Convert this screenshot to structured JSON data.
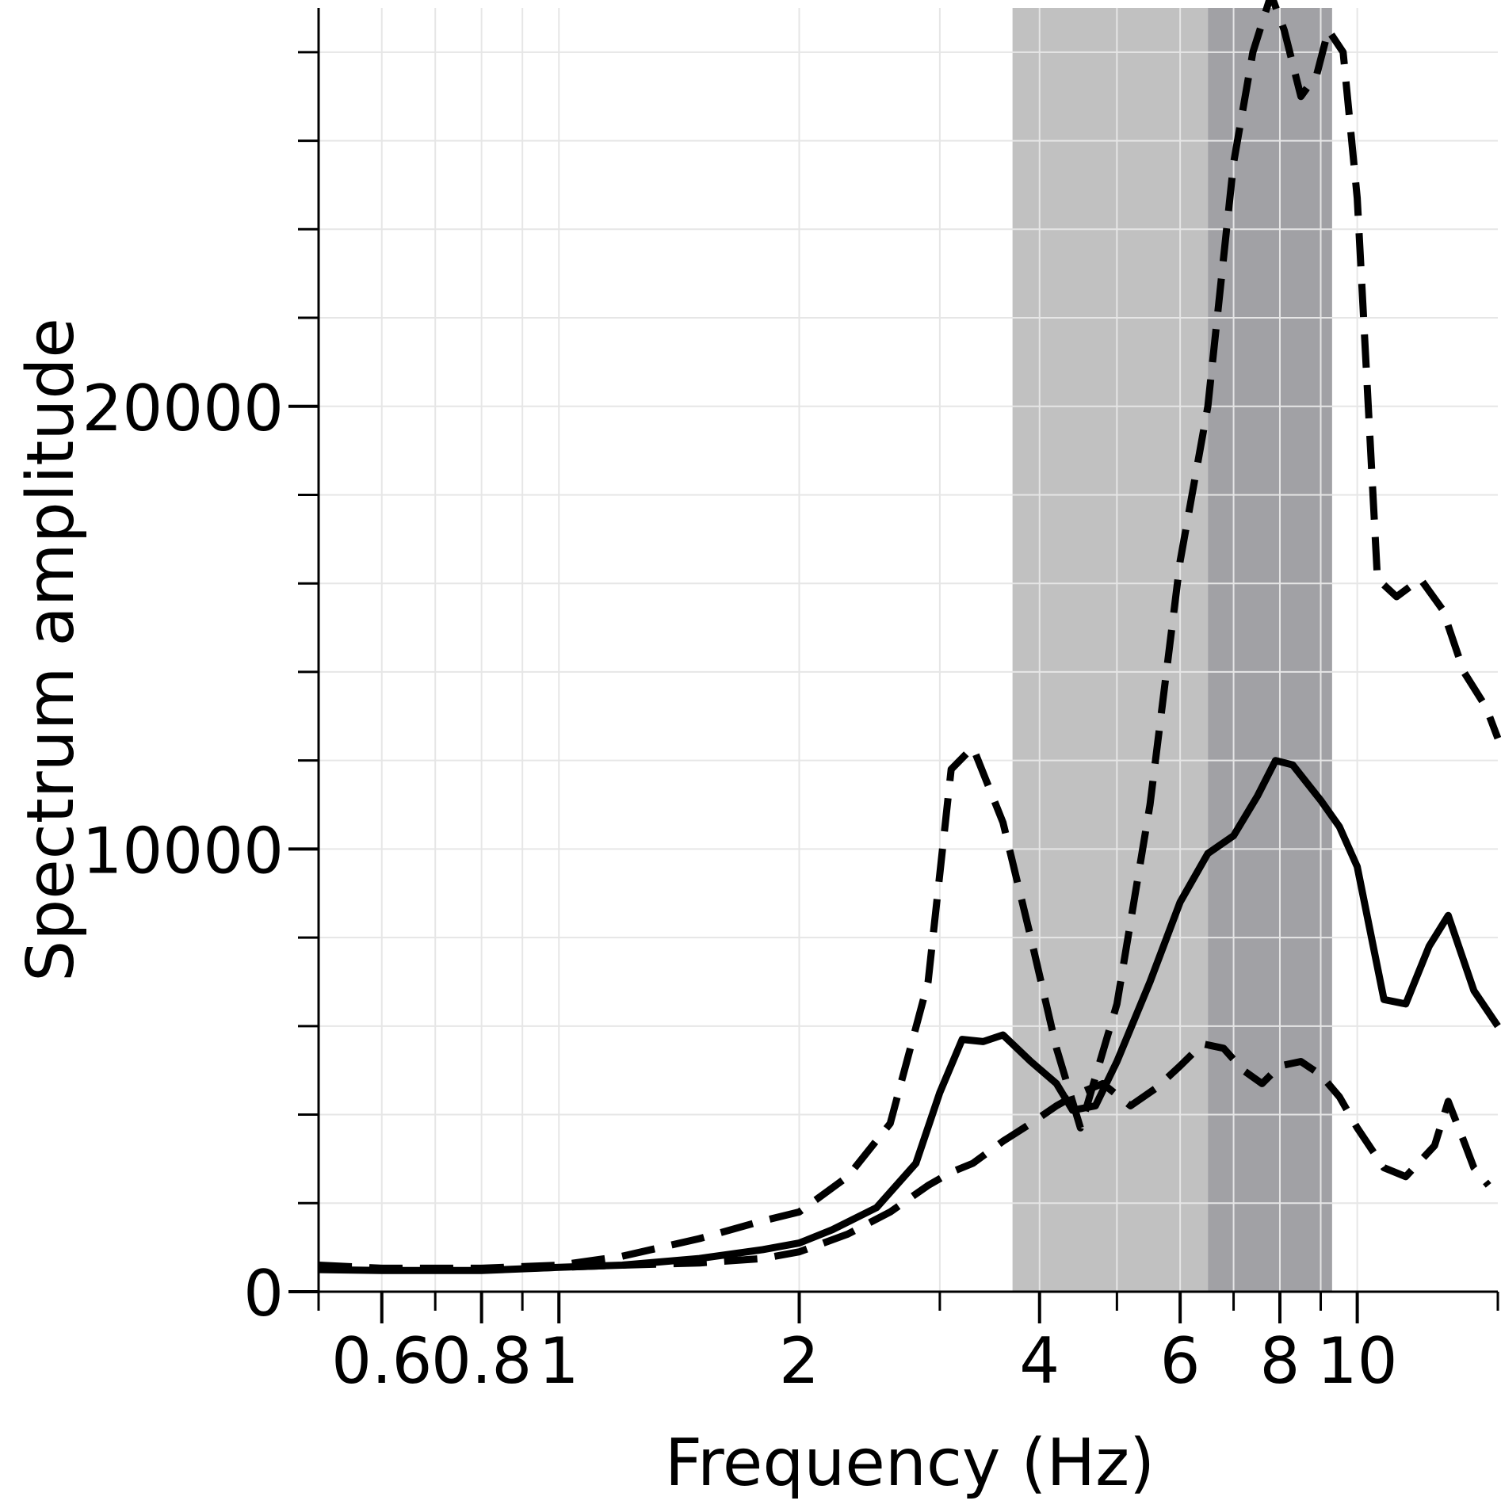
{
  "chart_data": {
    "type": "line",
    "title": "",
    "xlabel": "Frequency (Hz)",
    "ylabel": "Spectrum amplitude",
    "x_scale": "log",
    "xlim": [
      0.5,
      15
    ],
    "ylim": [
      0,
      29000
    ],
    "grid": true,
    "legend": "none",
    "x_tick_labels": [
      {
        "value": 0.6,
        "label": "0.6"
      },
      {
        "value": 0.8,
        "label": "0.8"
      },
      {
        "value": 1,
        "label": "1"
      },
      {
        "value": 2,
        "label": "2"
      },
      {
        "value": 4,
        "label": "4"
      },
      {
        "value": 6,
        "label": "6"
      },
      {
        "value": 8,
        "label": "8"
      },
      {
        "value": 10,
        "label": "10"
      }
    ],
    "y_tick_labels": [
      {
        "value": 0,
        "label": "0"
      },
      {
        "value": 10000,
        "label": "10000"
      },
      {
        "value": 20000,
        "label": "20000"
      }
    ],
    "shaded_bands": [
      {
        "x_range": [
          3.7,
          6.5
        ],
        "color": "#c1c1c1"
      },
      {
        "x_range": [
          6.5,
          9.3
        ],
        "color": "#a1a1a5"
      }
    ],
    "series": [
      {
        "style": "solid",
        "color": "#000000",
        "x": [
          0.5,
          0.6,
          0.8,
          1.0,
          1.2,
          1.5,
          1.8,
          2.0,
          2.2,
          2.5,
          2.8,
          3.0,
          3.2,
          3.4,
          3.6,
          3.9,
          4.2,
          4.4,
          4.7,
          5.0,
          5.5,
          6.0,
          6.5,
          7.0,
          7.5,
          7.9,
          8.3,
          9.0,
          9.5,
          10.0,
          10.8,
          11.5,
          12.3,
          13.0,
          14.0,
          15.0
        ],
        "y": [
          500,
          480,
          480,
          550,
          600,
          750,
          950,
          1100,
          1400,
          1900,
          2900,
          4500,
          5700,
          5650,
          5800,
          5200,
          4700,
          4100,
          4200,
          5200,
          7000,
          8800,
          9900,
          10300,
          11200,
          12000,
          11900,
          11100,
          10500,
          9600,
          6600,
          6500,
          7800,
          8500,
          6800,
          6000
        ]
      },
      {
        "style": "dashed",
        "color": "#000000",
        "x": [
          0.5,
          0.6,
          0.8,
          1.0,
          1.2,
          1.5,
          1.8,
          2.0,
          2.3,
          2.6,
          2.9,
          3.1,
          3.3,
          3.6,
          3.9,
          4.2,
          4.5,
          5.0,
          5.5,
          6.0,
          6.5,
          7.0,
          7.4,
          7.8,
          8.1,
          8.5,
          8.9,
          9.2,
          9.6,
          10.0,
          10.6,
          11.2,
          12.0,
          12.8,
          13.6,
          14.5,
          15.0
        ],
        "y": [
          600,
          530,
          530,
          600,
          800,
          1200,
          1600,
          1800,
          2600,
          3800,
          7000,
          11800,
          12300,
          10600,
          8000,
          5500,
          3700,
          6500,
          11000,
          16500,
          20000,
          25500,
          28000,
          29300,
          28500,
          27000,
          27500,
          28500,
          28000,
          24700,
          16100,
          15700,
          16100,
          15400,
          14000,
          13200,
          12500
        ]
      },
      {
        "style": "dashed",
        "color": "#000000",
        "x": [
          0.5,
          0.6,
          0.8,
          1.0,
          1.2,
          1.5,
          1.8,
          2.0,
          2.3,
          2.6,
          2.9,
          3.1,
          3.3,
          3.6,
          3.9,
          4.2,
          4.5,
          4.8,
          5.2,
          5.6,
          6.0,
          6.4,
          6.8,
          7.2,
          7.6,
          8.0,
          8.5,
          9.0,
          9.5,
          10.0,
          10.8,
          11.5,
          12.5,
          13.0,
          13.6,
          14.0,
          14.6
        ],
        "y": [
          550,
          500,
          500,
          550,
          600,
          650,
          750,
          900,
          1300,
          1800,
          2400,
          2700,
          2900,
          3400,
          3800,
          4200,
          4500,
          4700,
          4200,
          4600,
          5100,
          5600,
          5500,
          5000,
          4700,
          5100,
          5200,
          4900,
          4400,
          3700,
          2800,
          2600,
          3300,
          4300,
          3400,
          2800,
          2400
        ]
      }
    ]
  }
}
